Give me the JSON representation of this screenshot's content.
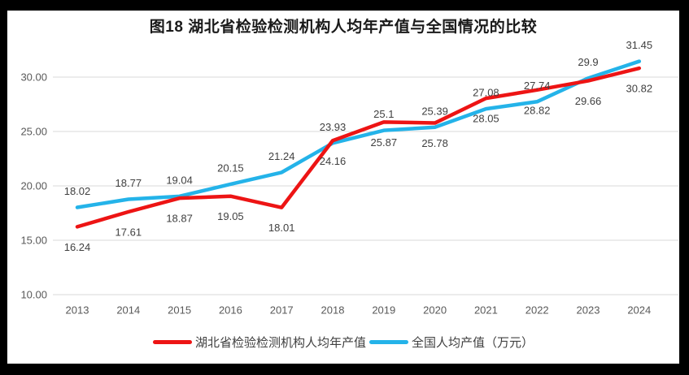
{
  "chart_data": {
    "type": "line",
    "title": "图18 湖北省检验检测机构人均年产值与全国情况的比较",
    "categories": [
      "2013",
      "2014",
      "2015",
      "2016",
      "2017",
      "2018",
      "2019",
      "2020",
      "2021",
      "2022",
      "2023",
      "2024"
    ],
    "series": [
      {
        "name": "湖北省检验检测机构人均年产值",
        "color": "#ed1414",
        "label_position": "below",
        "values": [
          16.24,
          17.61,
          18.87,
          19.05,
          18.01,
          24.16,
          25.87,
          25.78,
          28.05,
          28.82,
          29.66,
          30.82
        ]
      },
      {
        "name": "全国人均产值（万元）",
        "color": "#24b3e9",
        "label_position": "above",
        "values": [
          18.02,
          18.77,
          19.04,
          20.15,
          21.24,
          23.93,
          25.1,
          25.39,
          27.08,
          27.74,
          29.9,
          31.45
        ]
      }
    ],
    "y_axis": {
      "tick_labels": [
        "30.00",
        "25.00",
        "20.00",
        "15.00",
        "10.00"
      ],
      "tick_values": [
        30,
        25,
        20,
        15,
        10
      ],
      "min": 10,
      "max": 32.5
    },
    "grid": true,
    "legend_position": "bottom",
    "colors": {
      "grid": "#d9d9d9",
      "axis_text": "#595959",
      "data_label_text": "#404040",
      "background": "#ffffff",
      "frame": "#000000"
    }
  }
}
